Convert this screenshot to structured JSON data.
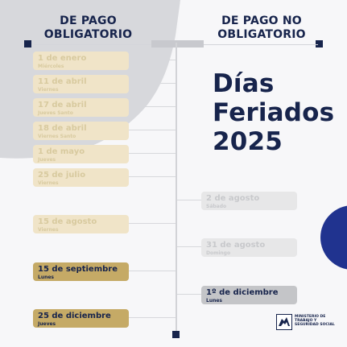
{
  "headers": {
    "left": [
      "DE PAGO",
      "OBLIGATORIO"
    ],
    "right": [
      "DE PAGO NO",
      "OBLIGATORIO"
    ]
  },
  "hero": {
    "lines": [
      "Días",
      "Feriados",
      "2025"
    ]
  },
  "left_items": [
    {
      "title": "1 de enero",
      "subtitle": "Miércoles",
      "style": "light"
    },
    {
      "title": "11 de abril",
      "subtitle": "Viernes",
      "style": "light"
    },
    {
      "title": "17 de abril",
      "subtitle": "Jueves Santo",
      "style": "light"
    },
    {
      "title": "18 de abril",
      "subtitle": "Viernes Santo",
      "style": "light"
    },
    {
      "title": "1 de mayo",
      "subtitle": "Jueves",
      "style": "light"
    },
    {
      "title": "25 de julio",
      "subtitle": "Viernes",
      "style": "light"
    },
    {
      "title": "15 de agosto",
      "subtitle": "Viernes",
      "style": "light"
    },
    {
      "title": "15 de septiembre",
      "subtitle": "Lunes",
      "style": "strong"
    },
    {
      "title": "25 de diciembre",
      "subtitle": "Jueves",
      "style": "strong"
    }
  ],
  "right_items": [
    {
      "title": "2 de agosto",
      "subtitle": "Sábado",
      "style": "light"
    },
    {
      "title": "31 de agosto",
      "subtitle": "Domingo",
      "style": "light"
    },
    {
      "title": "1º de diciembre",
      "subtitle": "Lunes",
      "style": "strong"
    }
  ],
  "logo": {
    "lines": [
      "MINISTERIO DE",
      "TRABAJO Y",
      "SEGURIDAD SOCIAL"
    ]
  },
  "colors": {
    "navy": "#17244c",
    "gold": "#c5aa66",
    "gold_light": "#f0e4c8",
    "gray": "#c4c5c8",
    "gray_light": "#e7e7e8",
    "blue_accent": "#20338f"
  },
  "icons": {
    "logo": "ministry-logo-icon",
    "marker": "square-marker-icon"
  }
}
